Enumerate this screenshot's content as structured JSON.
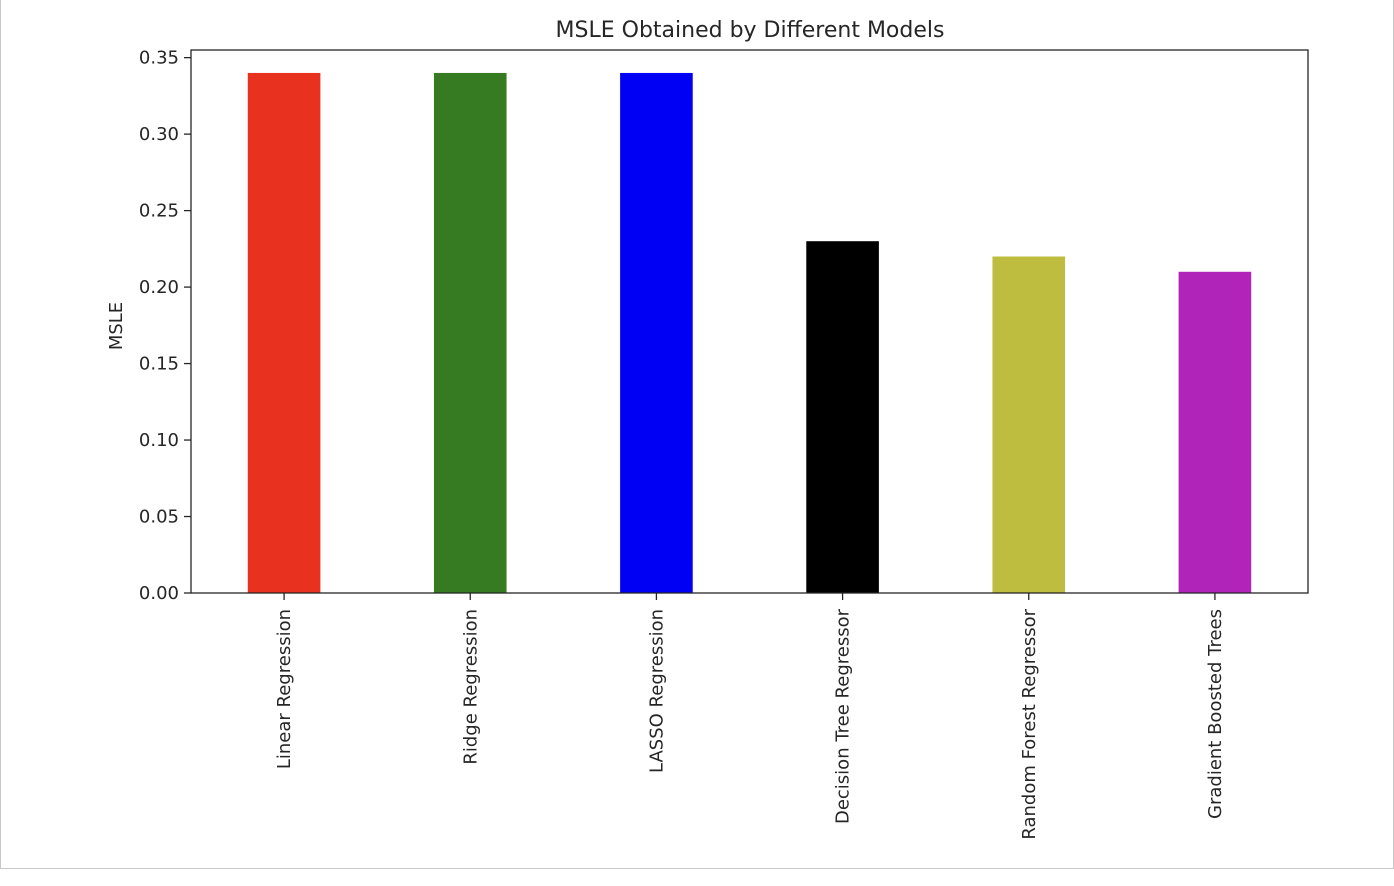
{
  "chart_data": {
    "type": "bar",
    "title": "MSLE Obtained by Different Models",
    "xlabel": "",
    "ylabel": "MSLE",
    "categories": [
      "Linear Regression",
      "Ridge Regression",
      "LASSO Regression",
      "Decision Tree Regressor",
      "Random Forest Regressor",
      "Gradient Boosted Trees"
    ],
    "values": [
      0.34,
      0.34,
      0.34,
      0.23,
      0.22,
      0.21
    ],
    "colors": [
      "#e8311f",
      "#367b22",
      "#0000f5",
      "#000000",
      "#bfbd3f",
      "#b124ba"
    ],
    "ylim": [
      0,
      0.355
    ],
    "yticks": [
      "0.00",
      "0.05",
      "0.10",
      "0.15",
      "0.20",
      "0.25",
      "0.30",
      "0.35"
    ],
    "ytick_values": [
      0,
      0.05,
      0.1,
      0.15,
      0.2,
      0.25,
      0.3,
      0.35
    ],
    "grid": false,
    "legend": "none"
  }
}
